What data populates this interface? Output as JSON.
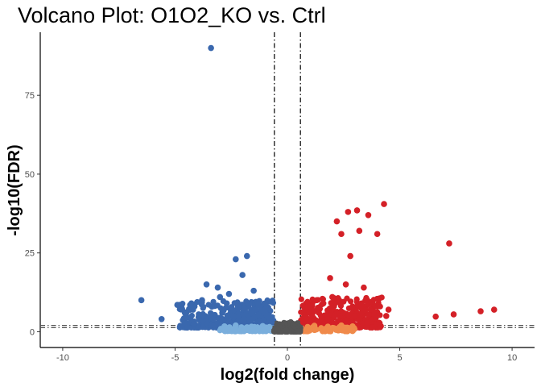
{
  "chart_data": {
    "type": "scatter",
    "title": "Volcano Plot: O1O2_KO vs. Ctrl",
    "xlabel": "log2(fold change)",
    "ylabel": "-log10(FDR)",
    "xlim": [
      -11,
      11
    ],
    "ylim": [
      -5,
      95
    ],
    "x_ticks": [
      -10,
      -5,
      0,
      5,
      10
    ],
    "y_ticks": [
      0,
      25,
      50,
      75
    ],
    "grid": false,
    "legend": "none",
    "vertical_thresholds": [
      -0.58,
      0.58
    ],
    "horizontal_thresholds": [
      1.3,
      2
    ],
    "colors": {
      "down": "#3a68ae",
      "down_light": "#7aaedc",
      "up": "#d42027",
      "up_light": "#f08a4b",
      "ns": "#555555"
    },
    "series": [
      {
        "group": "down",
        "points": [
          [
            -3.4,
            90
          ],
          [
            -1.8,
            24
          ],
          [
            -2.3,
            23
          ],
          [
            -2.0,
            18
          ],
          [
            -6.5,
            10
          ],
          [
            -4.9,
            8.5
          ],
          [
            -5.6,
            4
          ],
          [
            -3.6,
            15
          ],
          [
            -3.1,
            14
          ],
          [
            -2.6,
            12
          ],
          [
            -1.5,
            13
          ],
          [
            -4.5,
            6
          ],
          [
            -4.2,
            7
          ],
          [
            -3.8,
            10
          ],
          [
            -3.0,
            11
          ],
          [
            -2.7,
            9
          ],
          [
            -2.2,
            8
          ],
          [
            -1.9,
            7
          ],
          [
            -1.6,
            6
          ],
          [
            -1.3,
            9
          ],
          [
            -1.0,
            6
          ],
          [
            -0.8,
            4
          ],
          [
            -0.7,
            3
          ],
          [
            -2.4,
            5
          ],
          [
            -3.3,
            4
          ],
          [
            -2.9,
            6
          ],
          [
            -1.7,
            4
          ],
          [
            -1.2,
            3
          ],
          [
            -0.9,
            5
          ],
          [
            -3.7,
            5
          ]
        ]
      },
      {
        "group": "down_light",
        "points": [
          [
            -2.3,
            2
          ],
          [
            -1.6,
            1.6
          ],
          [
            -1.1,
            1.8
          ],
          [
            -0.8,
            1.5
          ],
          [
            -2.8,
            1.7
          ]
        ]
      },
      {
        "group": "up",
        "points": [
          [
            4.3,
            40.5
          ],
          [
            3.1,
            38.5
          ],
          [
            2.7,
            38
          ],
          [
            3.6,
            37
          ],
          [
            2.2,
            35
          ],
          [
            3.2,
            32
          ],
          [
            2.4,
            31
          ],
          [
            4.0,
            31
          ],
          [
            7.2,
            28
          ],
          [
            2.8,
            24
          ],
          [
            1.9,
            17
          ],
          [
            2.6,
            15
          ],
          [
            3.4,
            14
          ],
          [
            4.5,
            7
          ],
          [
            4.4,
            5
          ],
          [
            8.6,
            6.5
          ],
          [
            9.2,
            7
          ],
          [
            7.4,
            5.5
          ],
          [
            6.6,
            4.8
          ],
          [
            1.0,
            8
          ],
          [
            1.3,
            10
          ],
          [
            1.6,
            9
          ],
          [
            2.0,
            11
          ],
          [
            2.3,
            10
          ],
          [
            2.9,
            8
          ],
          [
            3.3,
            9
          ],
          [
            3.7,
            7
          ],
          [
            1.1,
            5
          ],
          [
            1.4,
            6
          ],
          [
            1.8,
            4
          ],
          [
            2.5,
            6
          ],
          [
            0.8,
            4
          ],
          [
            0.7,
            3
          ],
          [
            2.1,
            5
          ],
          [
            3.0,
            5
          ]
        ]
      },
      {
        "group": "up_light",
        "points": [
          [
            1.2,
            1.9
          ],
          [
            1.8,
            1.6
          ],
          [
            2.4,
            2
          ],
          [
            0.9,
            1.5
          ],
          [
            2.9,
            1.7
          ]
        ]
      },
      {
        "group": "ns",
        "points": [
          [
            0,
            2.5
          ],
          [
            0.1,
            1.8
          ],
          [
            -0.1,
            1.6
          ],
          [
            0.2,
            1.2
          ],
          [
            -0.2,
            1.0
          ],
          [
            0.3,
            0.8
          ],
          [
            -0.3,
            0.6
          ],
          [
            0.4,
            0.5
          ],
          [
            -0.4,
            0.7
          ],
          [
            0.05,
            0.3
          ],
          [
            -0.05,
            0.4
          ],
          [
            0.15,
            3.0
          ],
          [
            -0.15,
            2.8
          ],
          [
            0.25,
            2.2
          ],
          [
            -0.25,
            2.0
          ],
          [
            0.35,
            1.5
          ],
          [
            -0.35,
            1.4
          ],
          [
            0.45,
            1.1
          ],
          [
            -0.45,
            0.9
          ],
          [
            0.5,
            0.2
          ]
        ]
      }
    ]
  }
}
